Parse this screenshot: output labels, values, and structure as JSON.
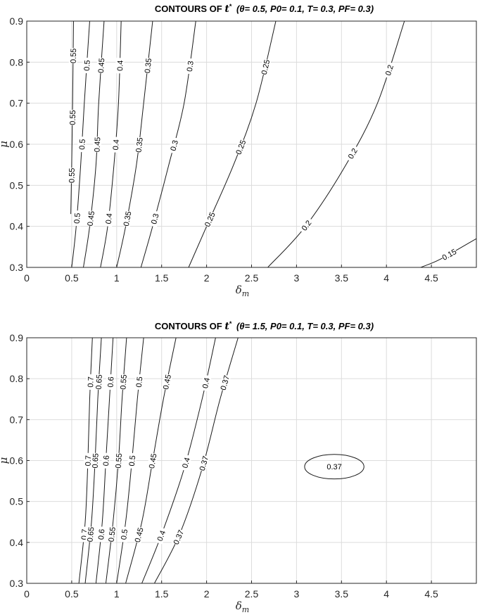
{
  "chart_data": [
    {
      "type": "contour",
      "title": "CONTOURS OF",
      "title_symbol": "t",
      "title_params": "(θ= 0.5, P0= 0.1, T= 0.3, PF= 0.3)",
      "xlabel": "δm",
      "ylabel": "μ",
      "xlim": [
        0,
        5
      ],
      "ylim": [
        0.3,
        0.9
      ],
      "xticks": [
        "0",
        "0.5",
        "1",
        "1.5",
        "2",
        "2.5",
        "3",
        "3.5",
        "4",
        "4.5"
      ],
      "yticks": [
        "0.3",
        "0.4",
        "0.5",
        "0.6",
        "0.7",
        "0.8",
        "0.9"
      ],
      "grid": true,
      "levels": [
        {
          "level": "0.55",
          "points": [
            [
              0.49,
              0.43
            ],
            [
              0.5,
              0.55
            ],
            [
              0.51,
              0.7
            ],
            [
              0.52,
              0.9
            ]
          ]
        },
        {
          "level": "0.5",
          "points": [
            [
              0.5,
              0.3
            ],
            [
              0.55,
              0.4
            ],
            [
              0.6,
              0.55
            ],
            [
              0.64,
              0.7
            ],
            [
              0.7,
              0.9
            ]
          ]
        },
        {
          "level": "0.45",
          "points": [
            [
              0.63,
              0.3
            ],
            [
              0.7,
              0.4
            ],
            [
              0.77,
              0.55
            ],
            [
              0.8,
              0.7
            ],
            [
              0.86,
              0.9
            ]
          ]
        },
        {
          "level": "0.4",
          "points": [
            [
              0.82,
              0.3
            ],
            [
              0.9,
              0.4
            ],
            [
              0.97,
              0.55
            ],
            [
              1.02,
              0.7
            ],
            [
              1.05,
              0.9
            ]
          ]
        },
        {
          "level": "0.35",
          "points": [
            [
              1.0,
              0.3
            ],
            [
              1.1,
              0.4
            ],
            [
              1.22,
              0.55
            ],
            [
              1.3,
              0.7
            ],
            [
              1.4,
              0.9
            ]
          ]
        },
        {
          "level": "0.3",
          "points": [
            [
              1.27,
              0.3
            ],
            [
              1.4,
              0.4
            ],
            [
              1.58,
              0.55
            ],
            [
              1.75,
              0.7
            ],
            [
              1.88,
              0.9
            ]
          ]
        },
        {
          "level": "0.25",
          "points": [
            [
              1.8,
              0.3
            ],
            [
              2.0,
              0.4
            ],
            [
              2.3,
              0.55
            ],
            [
              2.55,
              0.7
            ],
            [
              2.77,
              0.9
            ]
          ]
        },
        {
          "level": "0.2",
          "points": [
            [
              2.68,
              0.3
            ],
            [
              3.1,
              0.4
            ],
            [
              3.55,
              0.55
            ],
            [
              3.9,
              0.7
            ],
            [
              4.2,
              0.9
            ]
          ]
        },
        {
          "level": "0.15",
          "points": [
            [
              4.38,
              0.3
            ],
            [
              4.6,
              0.32
            ],
            [
              5.0,
              0.37
            ]
          ]
        }
      ]
    },
    {
      "type": "contour",
      "title": "CONTOURS OF",
      "title_symbol": "t",
      "title_params": "(θ= 1.5, P0= 0.1, T= 0.3, PF= 0.3)",
      "xlabel": "δm",
      "ylabel": "μ",
      "xlim": [
        0,
        5
      ],
      "ylim": [
        0.3,
        0.9
      ],
      "xticks": [
        "0",
        "0.5",
        "1",
        "1.5",
        "2",
        "2.5",
        "3",
        "3.5",
        "4",
        "4.5"
      ],
      "yticks": [
        "0.3",
        "0.4",
        "0.5",
        "0.6",
        "0.7",
        "0.8",
        "0.9"
      ],
      "grid": true,
      "levels": [
        {
          "level": "0.7",
          "points": [
            [
              0.58,
              0.3
            ],
            [
              0.65,
              0.45
            ],
            [
              0.68,
              0.6
            ],
            [
              0.7,
              0.75
            ],
            [
              0.73,
              0.9
            ]
          ]
        },
        {
          "level": "0.65",
          "points": [
            [
              0.65,
              0.3
            ],
            [
              0.72,
              0.45
            ],
            [
              0.76,
              0.6
            ],
            [
              0.79,
              0.75
            ],
            [
              0.83,
              0.9
            ]
          ]
        },
        {
          "level": "0.6",
          "points": [
            [
              0.77,
              0.3
            ],
            [
              0.84,
              0.45
            ],
            [
              0.88,
              0.6
            ],
            [
              0.92,
              0.75
            ],
            [
              0.96,
              0.9
            ]
          ]
        },
        {
          "level": "0.55",
          "points": [
            [
              0.88,
              0.3
            ],
            [
              0.96,
              0.45
            ],
            [
              1.02,
              0.6
            ],
            [
              1.06,
              0.75
            ],
            [
              1.11,
              0.9
            ]
          ]
        },
        {
          "level": "0.5",
          "points": [
            [
              1.0,
              0.3
            ],
            [
              1.1,
              0.45
            ],
            [
              1.17,
              0.6
            ],
            [
              1.23,
              0.75
            ],
            [
              1.3,
              0.9
            ]
          ]
        },
        {
          "level": "0.45",
          "points": [
            [
              1.1,
              0.3
            ],
            [
              1.28,
              0.45
            ],
            [
              1.4,
              0.6
            ],
            [
              1.52,
              0.75
            ],
            [
              1.66,
              0.9
            ]
          ]
        },
        {
          "level": "0.4",
          "points": [
            [
              1.28,
              0.3
            ],
            [
              1.5,
              0.42
            ],
            [
              1.75,
              0.58
            ],
            [
              1.95,
              0.75
            ],
            [
              2.1,
              0.9
            ]
          ]
        },
        {
          "level": "0.37",
          "points": [
            [
              1.42,
              0.3
            ],
            [
              1.7,
              0.42
            ],
            [
              1.95,
              0.58
            ],
            [
              2.15,
              0.75
            ],
            [
              2.35,
              0.9
            ]
          ]
        }
      ],
      "closed_contour": {
        "level": "0.37",
        "center": [
          3.42,
          0.585
        ],
        "rx": 0.33,
        "ry": 0.03
      }
    }
  ]
}
